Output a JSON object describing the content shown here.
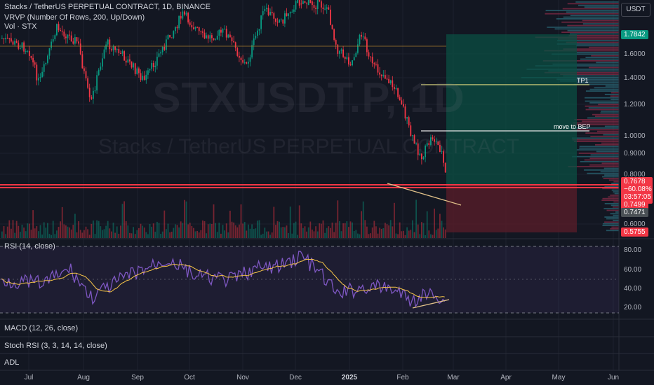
{
  "header": {
    "symbol_line": "Stacks / TetherUS PERPETUAL CONTRACT, 1D, BINANCE",
    "vrvp_line": "VRVP (Number Of Rows, 200, Up/Down)",
    "vol_line": "Vol · STX",
    "currency": "USDT"
  },
  "watermark": {
    "ticker": "STXUSDT.P, 1D",
    "name": "Stacks / TetherUS PERPETUAL CONTRACT"
  },
  "price_axis": {
    "ticks": [
      "1.6000",
      "1.4000",
      "1.2000",
      "1.0000",
      "0.9000",
      "0.8000",
      "0.6000"
    ],
    "badges": {
      "top": "1.7842",
      "current": "0.7678",
      "change": "−60.08%",
      "countdown": "03:57:05",
      "level1": "0.7499",
      "level2": "0.7471",
      "bottom": "0.5755"
    }
  },
  "annotations": {
    "tp1": "TP1",
    "bep": "move to BEP"
  },
  "rsi": {
    "title": "RSI (14, close)",
    "ticks": [
      "80.00",
      "60.00",
      "40.00",
      "20.00"
    ]
  },
  "panes": {
    "macd": "MACD (12, 26, close)",
    "stoch": "Stoch RSI (3, 3, 14, 14, close)",
    "adl": "ADL"
  },
  "time_axis": {
    "labels": [
      "Jul",
      "Aug",
      "Sep",
      "Oct",
      "Nov",
      "Dec",
      "2025",
      "Feb",
      "Mar",
      "Apr",
      "May",
      "Jun"
    ]
  },
  "colors": {
    "background": "#131722",
    "up": "#089981",
    "down": "#f23645",
    "support_line": "#f23645",
    "trend_line": "#e2c28a",
    "target_line": "#d7d27c",
    "profit_zone": "#0d4a3e",
    "loss_zone": "#5a1f28",
    "rsi_line": "#7e57c2",
    "rsi_ma": "#f7c548"
  }
}
